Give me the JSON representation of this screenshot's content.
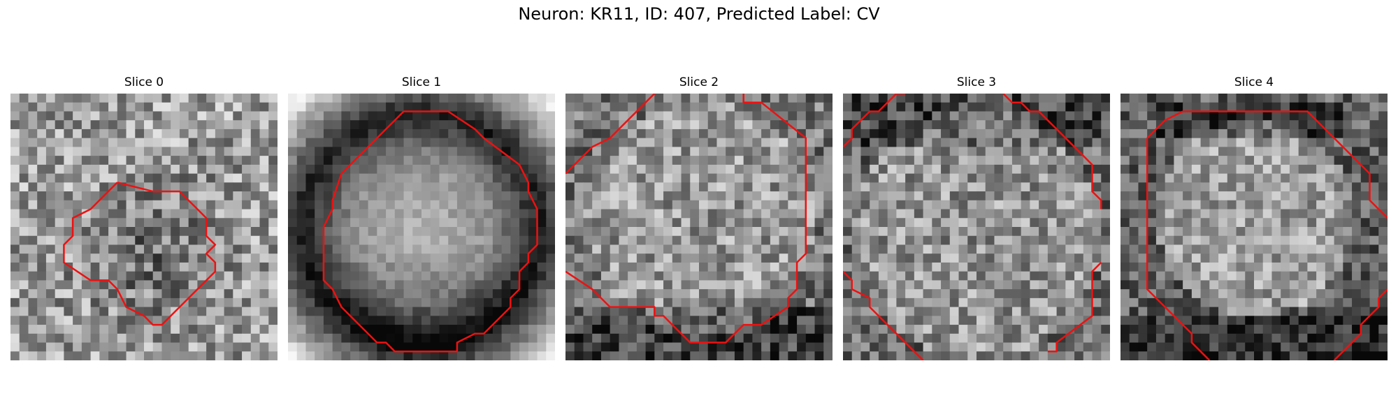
{
  "figure": {
    "title": "Neuron: KR11, ID: 407, Predicted Label: CV"
  },
  "panels": [
    {
      "title": "Slice 0"
    },
    {
      "title": "Slice 1"
    },
    {
      "title": "Slice 2"
    },
    {
      "title": "Slice 3"
    },
    {
      "title": "Slice 4"
    }
  ],
  "colors": {
    "contour": "#ee1111",
    "background": "#ffffff"
  },
  "image": {
    "colormap": "grayscale",
    "grid": "30x30 pixels per slice"
  }
}
